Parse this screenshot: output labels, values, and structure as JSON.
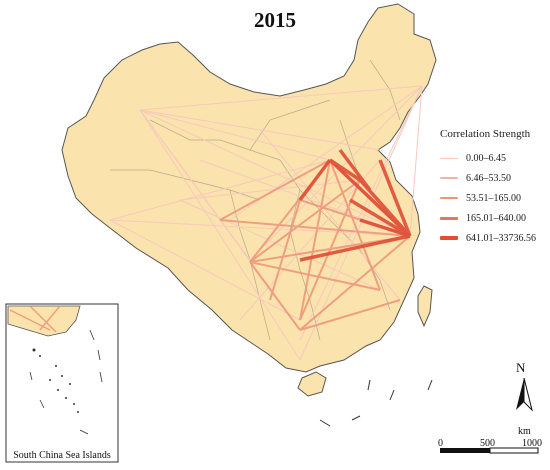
{
  "title": "2015",
  "legend": {
    "title": "Correlation Strength",
    "items": [
      {
        "label": "0.00–6.45",
        "color": "#f6c9bc",
        "weight": 1
      },
      {
        "label": "6.46–53.50",
        "color": "#f2b3a1",
        "weight": 1.5
      },
      {
        "label": "53.51–165.00",
        "color": "#ee9478",
        "weight": 2
      },
      {
        "label": "165.01–640.00",
        "color": "#e87559",
        "weight": 3
      },
      {
        "label": "641.01–33736.56",
        "color": "#df4d36",
        "weight": 4
      }
    ]
  },
  "inset": {
    "label": "South China Sea Islands"
  },
  "scale": {
    "ticks": [
      "0",
      "500",
      "1000"
    ],
    "unit": "km"
  },
  "north_arrow": {
    "label": "N"
  },
  "colors": {
    "land": "#fbe3ae",
    "border": "#555555",
    "province_border": "#b9a98a"
  }
}
